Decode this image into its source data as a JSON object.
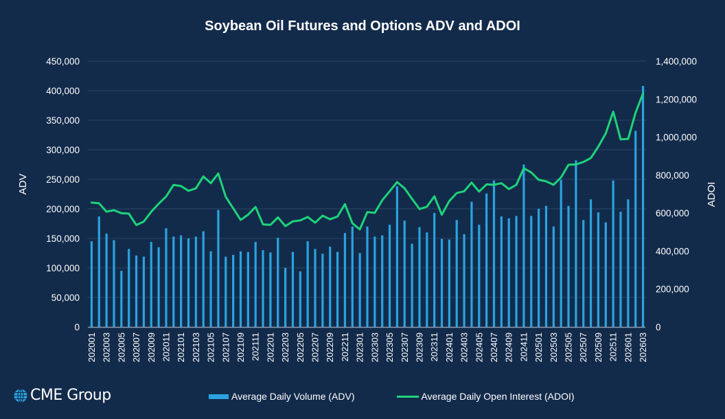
{
  "chart_data": {
    "type": "bar+line",
    "title": "Soybean Oil Futures and Options ADV and ADOI",
    "xlabel": "",
    "ylabel": "ADV",
    "y2label": "ADOI",
    "ylim": [
      0,
      450000
    ],
    "y2lim": [
      0,
      1400000
    ],
    "yticks": [
      "0",
      "50,000",
      "100,000",
      "150,000",
      "200,000",
      "250,000",
      "300,000",
      "350,000",
      "400,000",
      "450,000"
    ],
    "y2ticks": [
      "0",
      "200,000",
      "400,000",
      "600,000",
      "800,000",
      "1,000,000",
      "1,200,000",
      "1,400,000"
    ],
    "grid": true,
    "legend_position": "bottom",
    "categories": [
      "202001",
      "202002",
      "202003",
      "202004",
      "202005",
      "202006",
      "202007",
      "202008",
      "202009",
      "202010",
      "202011",
      "202012",
      "202101",
      "202102",
      "202103",
      "202104",
      "202105",
      "202106",
      "202107",
      "202108",
      "202109",
      "202110",
      "202111",
      "202112",
      "202201",
      "202202",
      "202203",
      "202204",
      "202205",
      "202206",
      "202207",
      "202208",
      "202209",
      "202210",
      "202211",
      "202212",
      "202301",
      "202302",
      "202303",
      "202304",
      "202305",
      "202306",
      "202307",
      "202308",
      "202309",
      "202310",
      "202311",
      "202312",
      "202401",
      "202402",
      "202403",
      "202404",
      "202405",
      "202406",
      "202407",
      "202408",
      "202409",
      "202410",
      "202411",
      "202412",
      "202501",
      "202502",
      "202503",
      "202504",
      "202505",
      "202506",
      "202507",
      "202508",
      "202509",
      "202510",
      "202511",
      "202512",
      "202601",
      "202602",
      "202603"
    ],
    "tick_every": 2,
    "series": [
      {
        "name": "Average Daily Volume (ADV)",
        "type": "bar",
        "axis": "left",
        "color": "#2aa3df",
        "values": [
          145000,
          187000,
          158000,
          147000,
          95000,
          132000,
          121000,
          119000,
          144000,
          135000,
          167000,
          153000,
          155000,
          150000,
          153000,
          162000,
          128000,
          198000,
          119000,
          122000,
          128000,
          127000,
          144000,
          130000,
          126000,
          151000,
          100000,
          127000,
          94000,
          145000,
          132000,
          124000,
          136000,
          127000,
          159000,
          170000,
          125000,
          170000,
          153000,
          155000,
          173000,
          238000,
          180000,
          141000,
          169000,
          160000,
          193000,
          149000,
          148000,
          181000,
          157000,
          212000,
          173000,
          226000,
          248000,
          187000,
          184000,
          188000,
          275000,
          188000,
          200000,
          205000,
          170000,
          249000,
          205000,
          282000,
          181000,
          216000,
          194000,
          177000,
          248000,
          195000,
          216000,
          332000,
          408000
        ]
      },
      {
        "name": "Average Daily Open Interest (ADOI)",
        "type": "line",
        "axis": "right",
        "color": "#1ed47a",
        "values": [
          655000,
          651000,
          607000,
          615000,
          599000,
          597000,
          537000,
          555000,
          607000,
          649000,
          687000,
          748000,
          742000,
          717000,
          730000,
          793000,
          757000,
          808000,
          685000,
          625000,
          564000,
          591000,
          632000,
          540000,
          538000,
          577000,
          531000,
          556000,
          561000,
          579000,
          549000,
          586000,
          567000,
          582000,
          647000,
          546000,
          514000,
          605000,
          601000,
          667000,
          715000,
          763000,
          730000,
          675000,
          621000,
          633000,
          688000,
          591000,
          663000,
          705000,
          715000,
          760000,
          713000,
          751000,
          749000,
          757000,
          726000,
          749000,
          836000,
          814000,
          775000,
          767000,
          749000,
          788000,
          854000,
          856000,
          869000,
          890000,
          950000,
          1019000,
          1134000,
          988000,
          990000,
          1128000,
          1230000
        ]
      }
    ]
  },
  "legend": {
    "adv_label": "Average Daily Volume (ADV)",
    "adoi_label": "Average Daily Open Interest (ADOI)"
  },
  "logo": {
    "text": "CME Group",
    "icon": "globe-icon"
  },
  "colors": {
    "background": "#132b4b",
    "bar": "#2aa3df",
    "line": "#1ed47a",
    "grid": "#294566",
    "axis": "#8a9cb3"
  }
}
